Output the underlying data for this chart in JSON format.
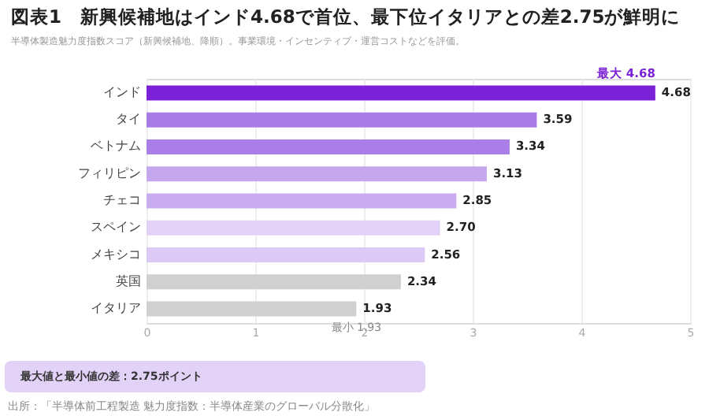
{
  "chart_data": {
    "type": "bar",
    "orientation": "horizontal",
    "title": "図表1　新興候補地はインド4.68で首位、最下位イタリアとの差2.75が鮮明に",
    "subtitle": "半導体製造魅力度指数スコア（新興候補地、降順）。事業環境・インセンティブ・運営コストなどを評価。",
    "categories": [
      "インド",
      "タイ",
      "ベトナム",
      "フィリピン",
      "チェコ",
      "スペイン",
      "メキシコ",
      "英国",
      "イタリア"
    ],
    "values": [
      4.68,
      3.59,
      3.34,
      3.13,
      2.85,
      2.7,
      2.56,
      2.34,
      1.93
    ],
    "colors": [
      "#7b22d8",
      "#a97be6",
      "#aa7ee7",
      "#c5a7ee",
      "#c9abef",
      "#e2d2f8",
      "#dcc9f6",
      "#d0d0d0",
      "#d0d0d0"
    ],
    "value_labels": [
      "4.68",
      "3.59",
      "3.34",
      "3.13",
      "2.85",
      "2.70",
      "2.56",
      "2.34",
      "1.93"
    ],
    "xlim": [
      0,
      5
    ],
    "xticks": [
      0,
      1,
      2,
      3,
      4,
      5
    ],
    "grid": "x",
    "annotations": [
      {
        "text": "最大 4.68",
        "x": 4.68,
        "y": "インド"
      },
      {
        "text": "最小 1.93",
        "x": 1.93,
        "y": "イタリア"
      },
      "最大値と最小値の差：2.75ポイント",
      "出所：「半導体前工程製造 魅力度指数：半導体産業のグローバル分散化」"
    ]
  }
}
